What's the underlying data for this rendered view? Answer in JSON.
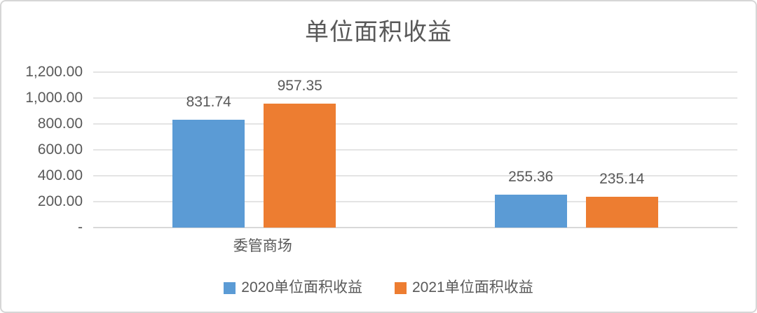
{
  "chart_data": {
    "type": "bar",
    "title": "单位面积收益",
    "categories": [
      "委管商场",
      ""
    ],
    "series": [
      {
        "name": "2020单位面积收益",
        "color": "#5B9BD5",
        "values": [
          831.74,
          255.36
        ],
        "value_labels": [
          "831.74",
          "255.36"
        ]
      },
      {
        "name": "2021单位面积收益",
        "color": "#ED7D31",
        "values": [
          957.35,
          235.14
        ],
        "value_labels": [
          "957.35",
          "235.14"
        ]
      }
    ],
    "xlabel": "",
    "ylabel": "",
    "ylim": [
      0,
      1200
    ],
    "y_tick_step": 200,
    "y_tick_labels": [
      "-",
      "200.00",
      "400.00",
      "600.00",
      "800.00",
      "1,000.00",
      "1,200.00"
    ],
    "grid": "horizontal",
    "legend_position": "bottom",
    "text_color": "#595959",
    "gridline_color": "#e4e4e4"
  }
}
